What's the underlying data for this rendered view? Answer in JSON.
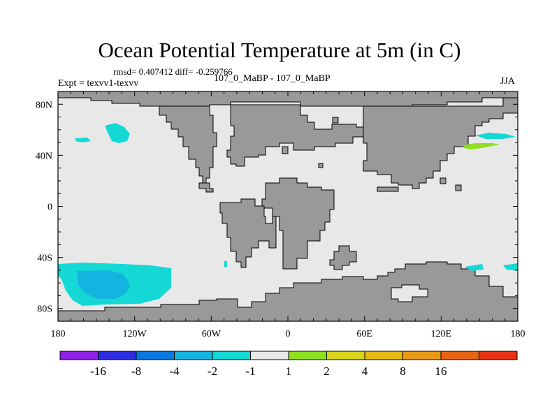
{
  "header": {
    "title": "Ocean Potential Temperature at 5m (in C)",
    "stats": "rmsd= 0.407412 diff= -0.259766",
    "experiment": "Expt = texvv1-texvv",
    "cases": "107_0_MaBP - 107_0_MaBP",
    "season": "JJA"
  },
  "map": {
    "lon_ticks": [
      {
        "value": -180,
        "label": "180"
      },
      {
        "value": -120,
        "label": "120W"
      },
      {
        "value": -60,
        "label": "60W"
      },
      {
        "value": 0,
        "label": "0"
      },
      {
        "value": 60,
        "label": "60E"
      },
      {
        "value": 120,
        "label": "120E"
      },
      {
        "value": 180,
        "label": "180"
      }
    ],
    "lat_ticks": [
      {
        "value": 80,
        "label": "80N"
      },
      {
        "value": 40,
        "label": "40N"
      },
      {
        "value": 0,
        "label": "0"
      },
      {
        "value": -40,
        "label": "40S"
      },
      {
        "value": -80,
        "label": "80S"
      }
    ],
    "lat_range": [
      -90,
      90
    ],
    "lon_range": [
      -180,
      180
    ],
    "colors": {
      "ocean": "#e8e8e8",
      "land": "#999999",
      "outline": "#000000"
    }
  },
  "colorbar": {
    "colors": [
      "#8d1fe6",
      "#2d2de0",
      "#0a78e0",
      "#14b4e0",
      "#14d8d4",
      "#e8e8e8",
      "#8ee01e",
      "#d8d41a",
      "#e8b814",
      "#e89a14",
      "#e86414",
      "#e63214"
    ],
    "labels": [
      "-16",
      "-8",
      "-4",
      "-2",
      "-1",
      "1",
      "2",
      "4",
      "8",
      "16"
    ]
  }
}
